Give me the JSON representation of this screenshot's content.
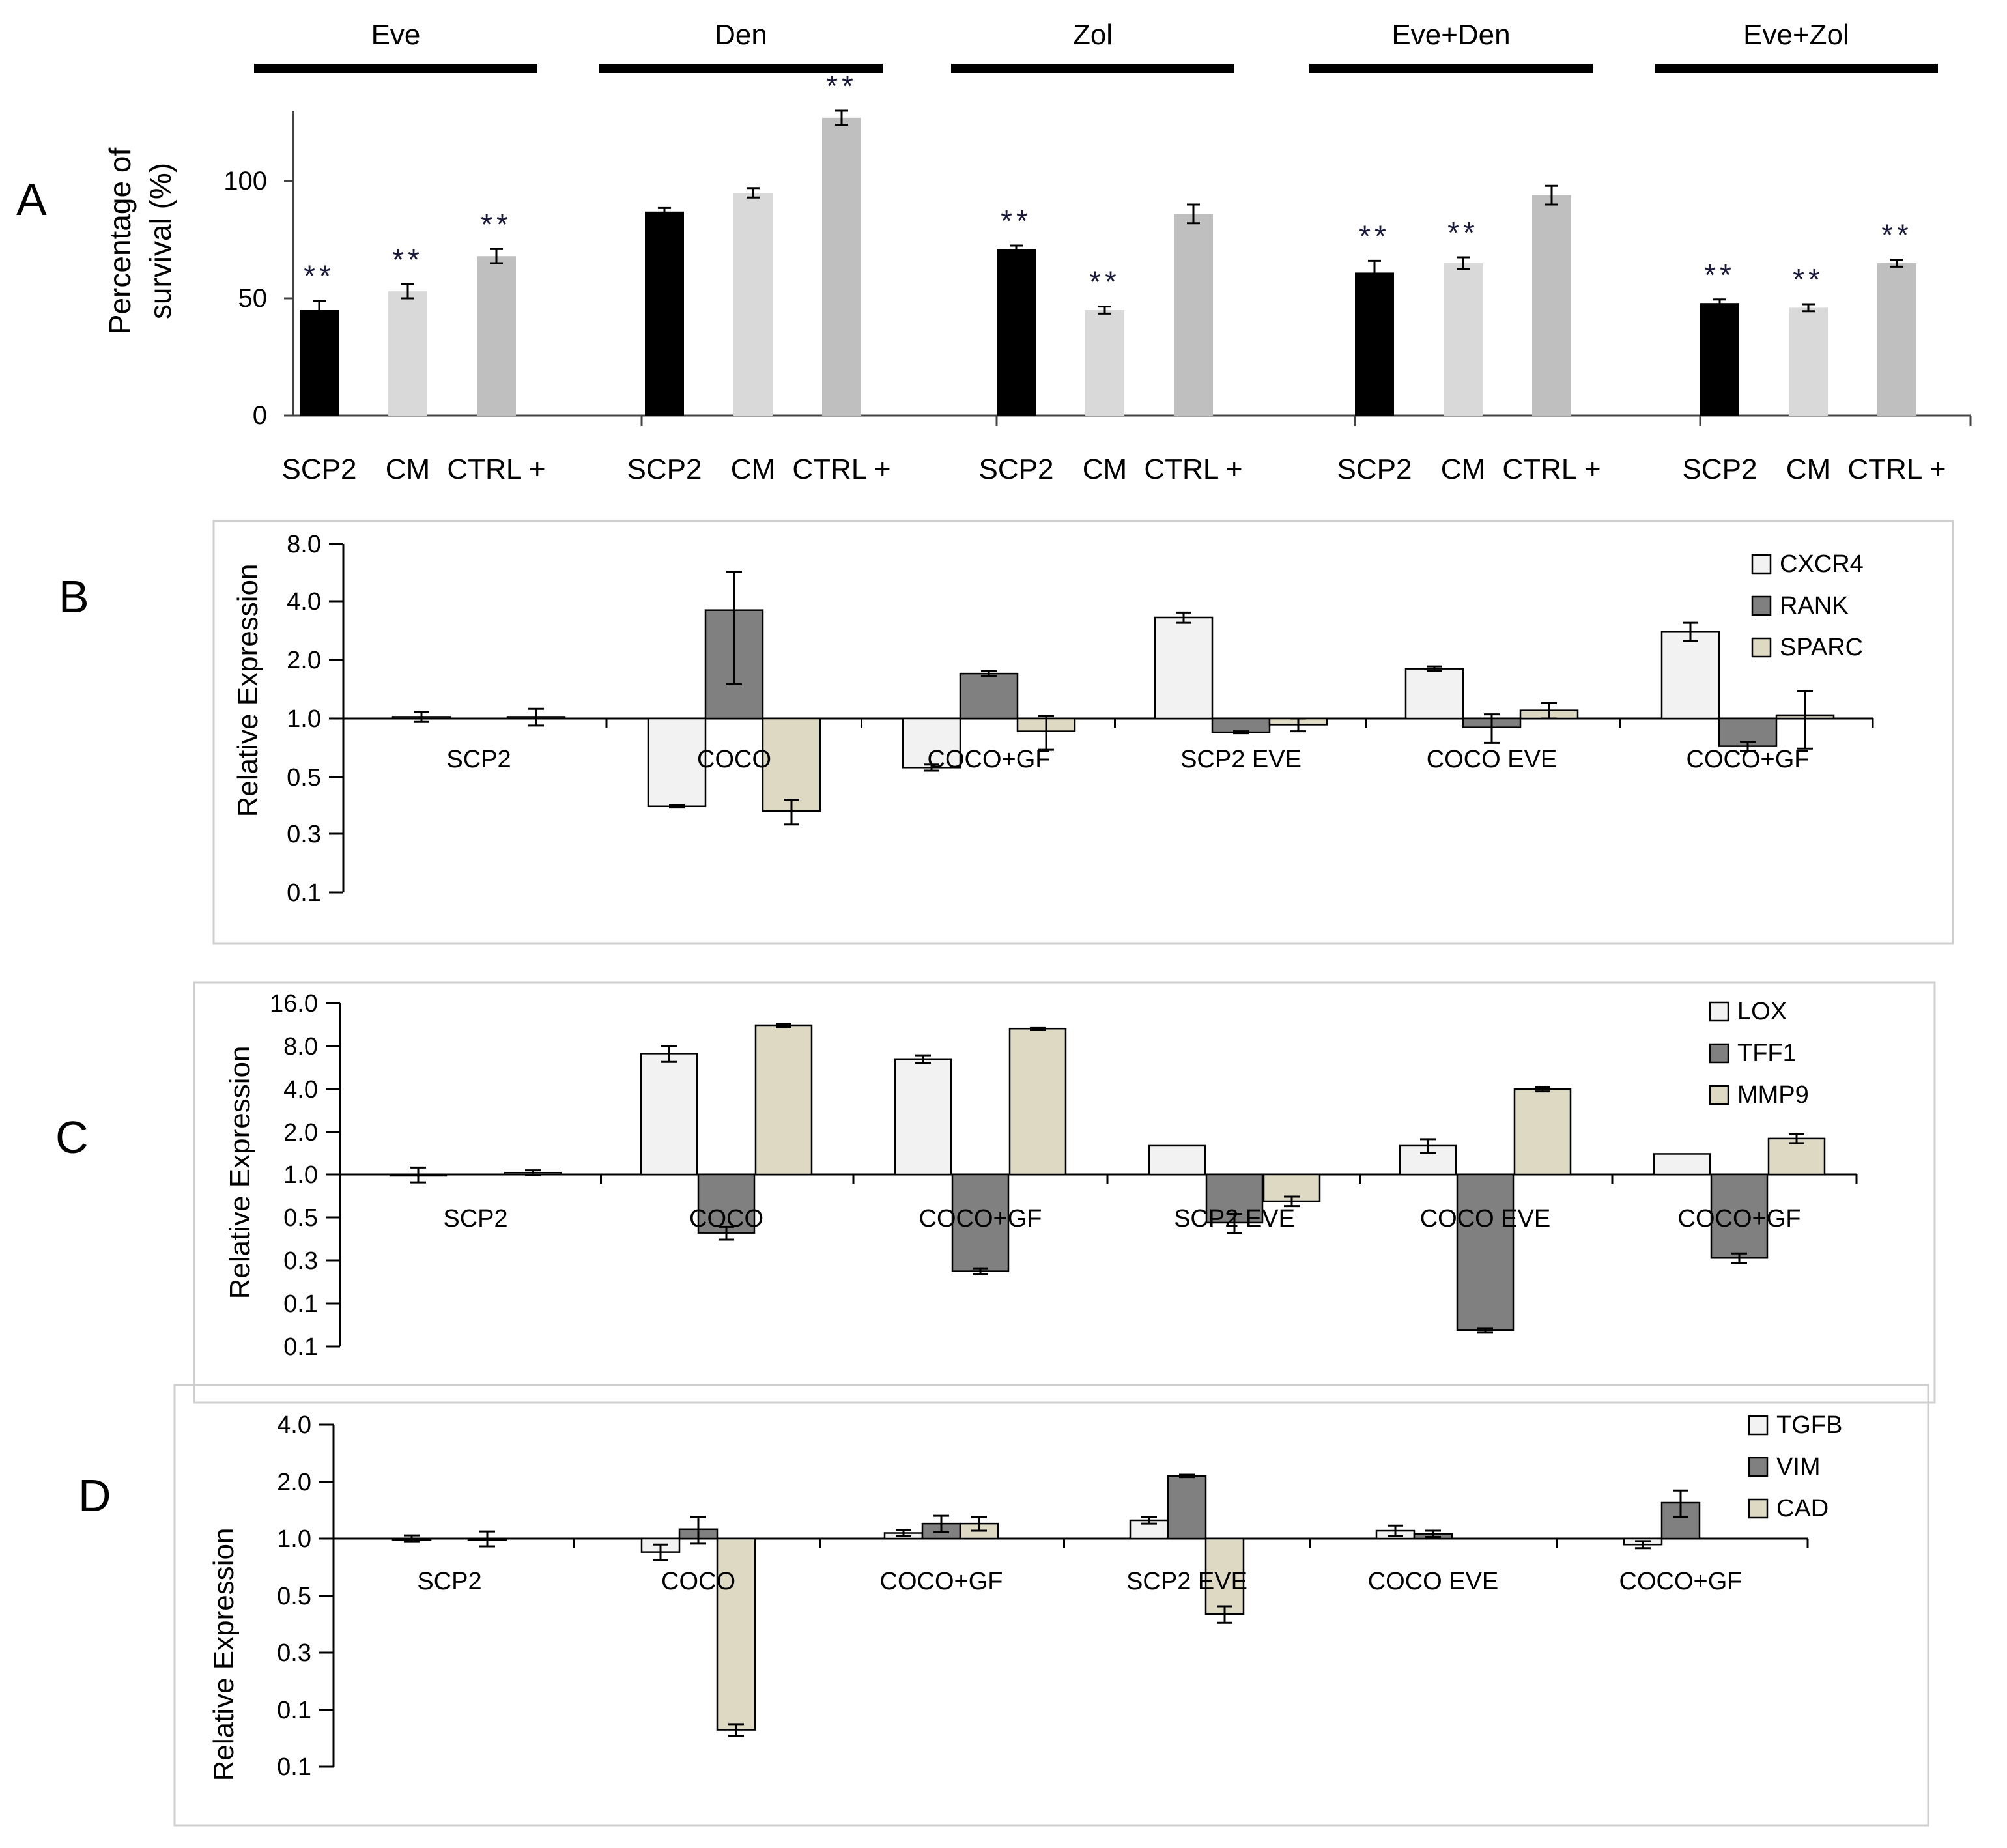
{
  "chart_data": [
    {
      "panel": "A",
      "type": "bar",
      "ylabel_line1": "Percentage of",
      "ylabel_line2": "survival  (%)",
      "ylim": [
        0,
        130
      ],
      "yticks": [
        0,
        50,
        100
      ],
      "ytick_labels": [
        "0",
        "50",
        "100"
      ],
      "groups": [
        {
          "name": "Eve",
          "categories": [
            "SCP2",
            "CM",
            "CTRL +"
          ],
          "values": [
            45,
            53,
            68
          ],
          "errors": [
            4,
            3,
            3
          ],
          "sig": [
            "**",
            "**",
            "**"
          ]
        },
        {
          "name": "Den",
          "categories": [
            "SCP2",
            "CM",
            "CTRL +"
          ],
          "values": [
            87,
            95,
            127
          ],
          "errors": [
            1.5,
            2,
            3
          ],
          "sig": [
            "",
            "",
            "**"
          ]
        },
        {
          "name": "Zol",
          "categories": [
            "SCP2",
            "CM",
            "CTRL +"
          ],
          "values": [
            71,
            45,
            86
          ],
          "errors": [
            1.5,
            1.5,
            4
          ],
          "sig": [
            "**",
            "**",
            ""
          ]
        },
        {
          "name": "Eve+Den",
          "categories": [
            "SCP2",
            "CM",
            "CTRL +"
          ],
          "values": [
            61,
            65,
            94
          ],
          "errors": [
            5,
            2.5,
            4
          ],
          "sig": [
            "**",
            "**",
            ""
          ]
        },
        {
          "name": "Eve+Zol",
          "categories": [
            "SCP2",
            "CM",
            "CTRL +"
          ],
          "values": [
            48,
            46,
            65
          ],
          "errors": [
            1.5,
            1.5,
            1.5
          ],
          "sig": [
            "**",
            "**",
            "**"
          ]
        }
      ],
      "bar_colors": [
        "#000000",
        "#d9d9d9",
        "#bfbfbf"
      ]
    },
    {
      "panel": "B",
      "type": "bar",
      "ylabel": "Relative Expression",
      "ytick_labels": [
        "8.0",
        "4.0",
        "2.0",
        "1.0",
        "0.5",
        "0.3",
        "0.1"
      ],
      "categories": [
        "SCP2",
        "COCO",
        "COCO+GF",
        "SCP2 EVE",
        "COCO EVE",
        "COCO+GF"
      ],
      "series": [
        {
          "name": "CXCR4",
          "color": "#f2f2f2",
          "values": [
            1.02,
            0.35,
            0.56,
            3.3,
            1.8,
            2.8
          ],
          "errors": [
            0.06,
            0.005,
            0.02,
            0.2,
            0.05,
            0.3
          ]
        },
        {
          "name": "RANK",
          "color": "#808080",
          "values": [
            null,
            3.6,
            1.7,
            0.85,
            0.9,
            0.72
          ],
          "errors": [
            0,
            2.1,
            0.05,
            0.01,
            0.15,
            0.04
          ]
        },
        {
          "name": "SPARC",
          "color": "#ddd9c3",
          "values": [
            1.02,
            0.33,
            0.86,
            0.93,
            1.1,
            1.04
          ],
          "errors": [
            0.1,
            0.05,
            0.17,
            0.07,
            0.1,
            0.34
          ]
        }
      ]
    },
    {
      "panel": "C",
      "type": "bar",
      "ylabel": "Relative Expression",
      "ytick_labels": [
        "16.0",
        "8.0",
        "4.0",
        "2.0",
        "1.0",
        "0.5",
        "0.3",
        "0.1",
        "0.1"
      ],
      "categories": [
        "SCP2",
        "COCO",
        "COCO+GF",
        "SCP2 EVE",
        "COCO EVE",
        "COCO+GF"
      ],
      "series": [
        {
          "name": "LOX",
          "color": "#f2f2f2",
          "values": [
            1.0,
            7.1,
            6.5,
            1.6,
            1.6,
            1.4
          ],
          "errors": [
            0.12,
            0.9,
            0.4,
            0,
            0.18,
            0
          ]
        },
        {
          "name": "TFF1",
          "color": "#808080",
          "values": [
            null,
            0.39,
            0.21,
            0.46,
            0.081,
            0.26
          ],
          "errors": [
            0,
            0.04,
            0.01,
            0.07,
            0.003,
            0.02
          ]
        },
        {
          "name": "MMP9",
          "color": "#ddd9c3",
          "values": [
            1.03,
            11.2,
            10.6,
            0.65,
            4.0,
            1.8
          ],
          "errors": [
            0.04,
            0.3,
            0.2,
            0.05,
            0.15,
            0.13
          ]
        }
      ]
    },
    {
      "panel": "D",
      "type": "bar",
      "ylabel": "Relative Expression",
      "ytick_labels": [
        "4.0",
        "2.0",
        "1.0",
        "0.5",
        "0.3",
        "0.1",
        "0.1"
      ],
      "categories": [
        "SCP2",
        "COCO",
        "COCO+GF",
        "SCP2 EVE",
        "COCO EVE",
        "COCO+GF"
      ],
      "series": [
        {
          "name": "TGFB",
          "color": "#f2f2f2",
          "values": [
            1.0,
            0.85,
            1.07,
            1.25,
            1.1,
            0.93
          ],
          "errors": [
            0.04,
            0.08,
            0.04,
            0.05,
            0.07,
            0.04
          ]
        },
        {
          "name": "VIM",
          "color": "#808080",
          "values": [
            null,
            1.12,
            1.2,
            2.15,
            1.06,
            1.55
          ],
          "errors": [
            0,
            0.18,
            0.12,
            0.03,
            0.04,
            0.25
          ]
        },
        {
          "name": "CAD",
          "color": "#ddd9c3",
          "values": [
            1.0,
            0.098,
            1.2,
            0.4,
            null,
            null
          ],
          "errors": [
            0.09,
            0.007,
            0.1,
            0.04,
            0,
            0
          ]
        }
      ]
    }
  ],
  "labels": {
    "A": "A",
    "B": "B",
    "C": "C",
    "D": "D"
  }
}
